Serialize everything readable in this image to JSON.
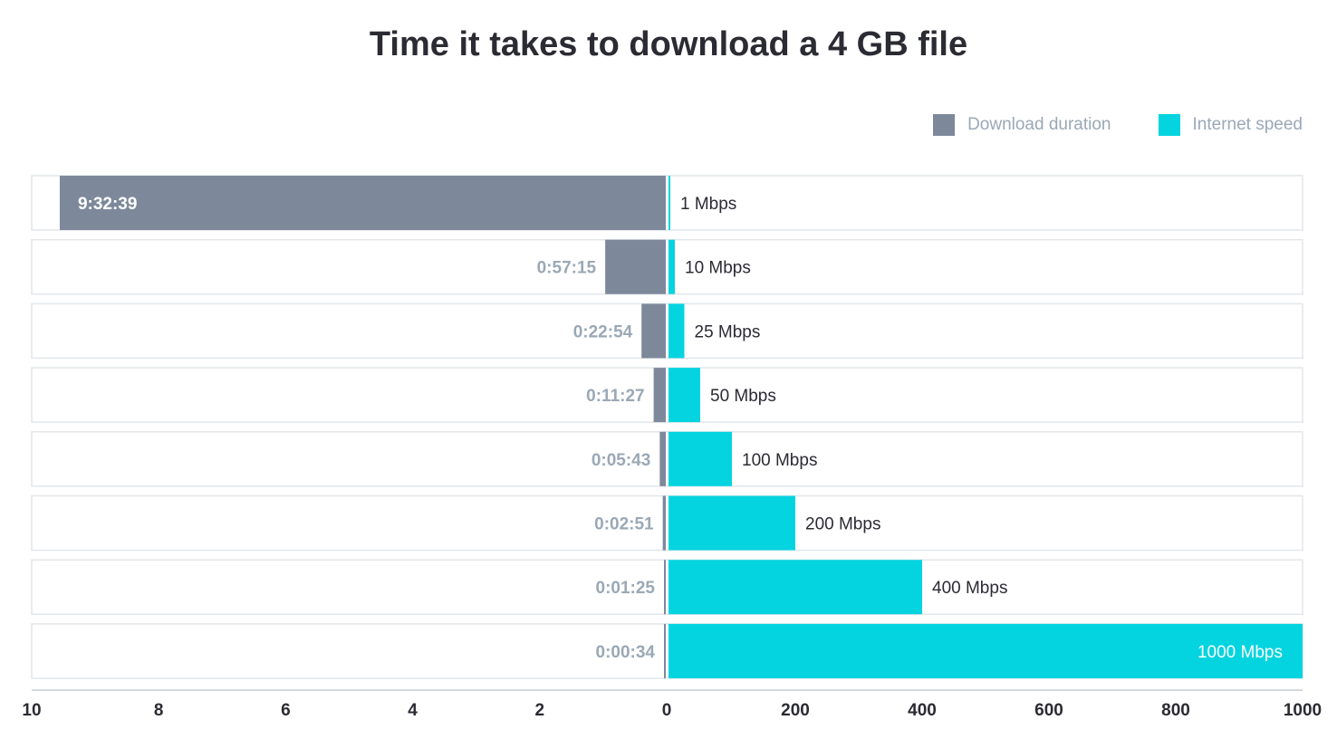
{
  "chart_data": {
    "type": "bar",
    "title": "Time it takes to download a 4 GB file",
    "legend": {
      "placement": "top-right",
      "entries": [
        {
          "label": "Download duration",
          "color": "#7d899a"
        },
        {
          "label": "Internet speed",
          "color": "#04d4e0"
        }
      ]
    },
    "categories": [
      "1 Mbps",
      "10 Mbps",
      "25 Mbps",
      "50 Mbps",
      "100 Mbps",
      "200 Mbps",
      "400 Mbps",
      "1000 Mbps"
    ],
    "series": [
      {
        "name": "Download duration",
        "unit": "hours",
        "values": [
          9.544,
          0.954,
          0.382,
          0.191,
          0.095,
          0.048,
          0.024,
          0.009
        ],
        "labels": [
          "9:32:39",
          "0:57:15",
          "0:22:54",
          "0:11:27",
          "0:05:43",
          "0:02:51",
          "0:01:25",
          "0:00:34"
        ]
      },
      {
        "name": "Internet speed",
        "unit": "Mbps",
        "values": [
          1,
          10,
          25,
          50,
          100,
          200,
          400,
          1000
        ],
        "labels": [
          "1 Mbps",
          "10 Mbps",
          "25 Mbps",
          "50 Mbps",
          "100 Mbps",
          "200 Mbps",
          "400 Mbps",
          "1000 Mbps"
        ]
      }
    ],
    "left_axis": {
      "range": [
        10,
        0
      ],
      "ticks": [
        "10",
        "8",
        "6",
        "4",
        "2",
        "0"
      ]
    },
    "right_axis": {
      "range": [
        0,
        1000
      ],
      "ticks": [
        "0",
        "200",
        "400",
        "600",
        "800",
        "1000"
      ]
    },
    "colors": {
      "duration": "#7d899a",
      "speed": "#04d4e0",
      "label_muted": "#9aa8b6",
      "label_dark": "#2b2b33",
      "row_border": "#e2e6ea"
    }
  }
}
